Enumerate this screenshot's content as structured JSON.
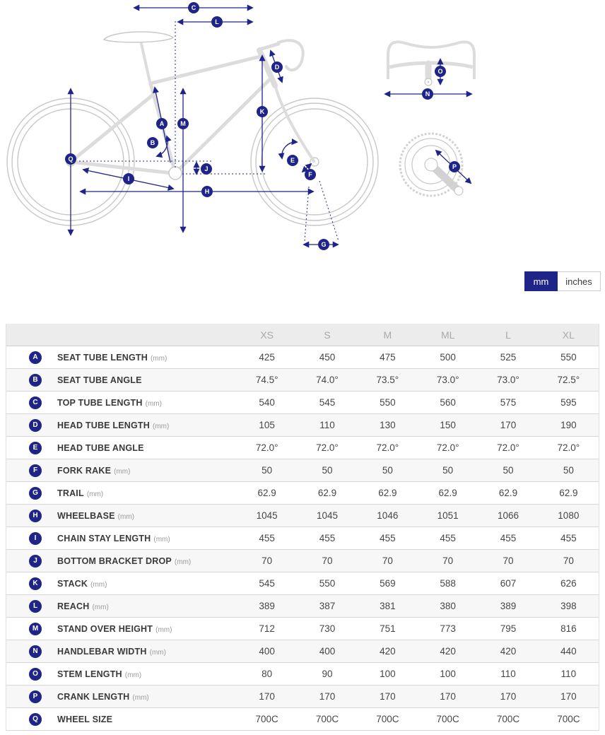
{
  "colors": {
    "navy": "#1f2488",
    "bike_outline": "#c8c8c8",
    "header_bg": "#ececec",
    "stripe": "#f7f7f7"
  },
  "unit_toggle": {
    "mm_label": "mm",
    "inches_label": "inches",
    "selected": "mm"
  },
  "diagram": {
    "badge_letters": [
      "A",
      "B",
      "C",
      "D",
      "E",
      "F",
      "G",
      "H",
      "I",
      "J",
      "K",
      "L",
      "M",
      "N",
      "O",
      "P",
      "Q"
    ]
  },
  "table": {
    "columns": [
      "XS",
      "S",
      "M",
      "ML",
      "L",
      "XL"
    ],
    "rows": [
      {
        "letter": "A",
        "label": "SEAT TUBE LENGTH",
        "unit": "(mm)",
        "values": [
          "425",
          "450",
          "475",
          "500",
          "525",
          "550"
        ]
      },
      {
        "letter": "B",
        "label": "SEAT TUBE ANGLE",
        "unit": "",
        "values": [
          "74.5°",
          "74.0°",
          "73.5°",
          "73.0°",
          "73.0°",
          "72.5°"
        ]
      },
      {
        "letter": "C",
        "label": "TOP TUBE LENGTH",
        "unit": "(mm)",
        "values": [
          "540",
          "545",
          "550",
          "560",
          "575",
          "595"
        ]
      },
      {
        "letter": "D",
        "label": "HEAD TUBE LENGTH",
        "unit": "(mm)",
        "values": [
          "105",
          "110",
          "130",
          "150",
          "170",
          "190"
        ]
      },
      {
        "letter": "E",
        "label": "HEAD TUBE ANGLE",
        "unit": "",
        "values": [
          "72.0°",
          "72.0°",
          "72.0°",
          "72.0°",
          "72.0°",
          "72.0°"
        ]
      },
      {
        "letter": "F",
        "label": "FORK RAKE",
        "unit": "(mm)",
        "values": [
          "50",
          "50",
          "50",
          "50",
          "50",
          "50"
        ]
      },
      {
        "letter": "G",
        "label": "TRAIL",
        "unit": "(mm)",
        "values": [
          "62.9",
          "62.9",
          "62.9",
          "62.9",
          "62.9",
          "62.9"
        ]
      },
      {
        "letter": "H",
        "label": "WHEELBASE",
        "unit": "(mm)",
        "values": [
          "1045",
          "1045",
          "1046",
          "1051",
          "1066",
          "1080"
        ]
      },
      {
        "letter": "I",
        "label": "CHAIN STAY LENGTH",
        "unit": "(mm)",
        "values": [
          "455",
          "455",
          "455",
          "455",
          "455",
          "455"
        ]
      },
      {
        "letter": "J",
        "label": "BOTTOM BRACKET DROP",
        "unit": "(mm)",
        "values": [
          "70",
          "70",
          "70",
          "70",
          "70",
          "70"
        ]
      },
      {
        "letter": "K",
        "label": "STACK",
        "unit": "(mm)",
        "values": [
          "545",
          "550",
          "569",
          "588",
          "607",
          "626"
        ]
      },
      {
        "letter": "L",
        "label": "REACH",
        "unit": "(mm)",
        "values": [
          "389",
          "387",
          "381",
          "380",
          "389",
          "398"
        ]
      },
      {
        "letter": "M",
        "label": "STAND OVER HEIGHT",
        "unit": "(mm)",
        "values": [
          "712",
          "730",
          "751",
          "773",
          "795",
          "816"
        ]
      },
      {
        "letter": "N",
        "label": "HANDLEBAR WIDTH",
        "unit": "(mm)",
        "values": [
          "400",
          "400",
          "420",
          "420",
          "420",
          "440"
        ]
      },
      {
        "letter": "O",
        "label": "STEM LENGTH",
        "unit": "(mm)",
        "values": [
          "80",
          "90",
          "100",
          "100",
          "110",
          "110"
        ]
      },
      {
        "letter": "P",
        "label": "CRANK LENGTH",
        "unit": "(mm)",
        "values": [
          "170",
          "170",
          "170",
          "170",
          "170",
          "170"
        ]
      },
      {
        "letter": "Q",
        "label": "WHEEL SIZE",
        "unit": "",
        "values": [
          "700C",
          "700C",
          "700C",
          "700C",
          "700C",
          "700C"
        ]
      }
    ]
  }
}
